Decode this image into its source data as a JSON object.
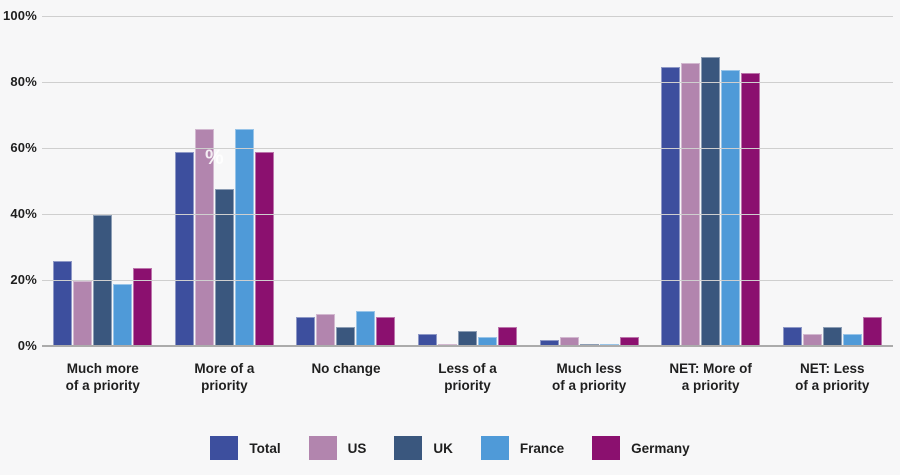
{
  "chart_data": {
    "type": "bar",
    "categories": [
      [
        "Much more",
        "of a priority"
      ],
      [
        "More of a",
        "priority"
      ],
      [
        "No change"
      ],
      [
        "Less of a",
        "priority"
      ],
      [
        "Much less",
        "of a priority"
      ],
      [
        "NET: More of",
        "a priority"
      ],
      [
        "NET: Less",
        "of a priority"
      ]
    ],
    "series": [
      {
        "name": "Total",
        "color": "#3d4f9e",
        "values": [
          26,
          59,
          9,
          4,
          2,
          85,
          6
        ]
      },
      {
        "name": "US",
        "color": "#b285ae",
        "values": [
          20,
          66,
          10,
          1,
          3,
          86,
          4
        ]
      },
      {
        "name": "UK",
        "color": "#3a577e",
        "values": [
          40,
          48,
          6,
          5,
          1,
          88,
          6
        ]
      },
      {
        "name": "France",
        "color": "#4f9ad8",
        "values": [
          19,
          66,
          11,
          3,
          1,
          84,
          4
        ]
      },
      {
        "name": "Germany",
        "color": "#8b106f",
        "values": [
          24,
          59,
          9,
          6,
          3,
          83,
          9
        ]
      }
    ],
    "y_ticks": [
      "0%",
      "20%",
      "40%",
      "60%",
      "80%",
      "100%"
    ],
    "ylim": [
      0,
      100
    ],
    "grid": true,
    "legend_position": "bottom",
    "stray_label": "%"
  },
  "theme": {
    "background": "#f7f7f8",
    "gridline": "#cfcfcf",
    "baseline": "#ababab",
    "text": "#1f1f1f",
    "bar_stroke": "rgba(255,255,255,0.42)"
  }
}
